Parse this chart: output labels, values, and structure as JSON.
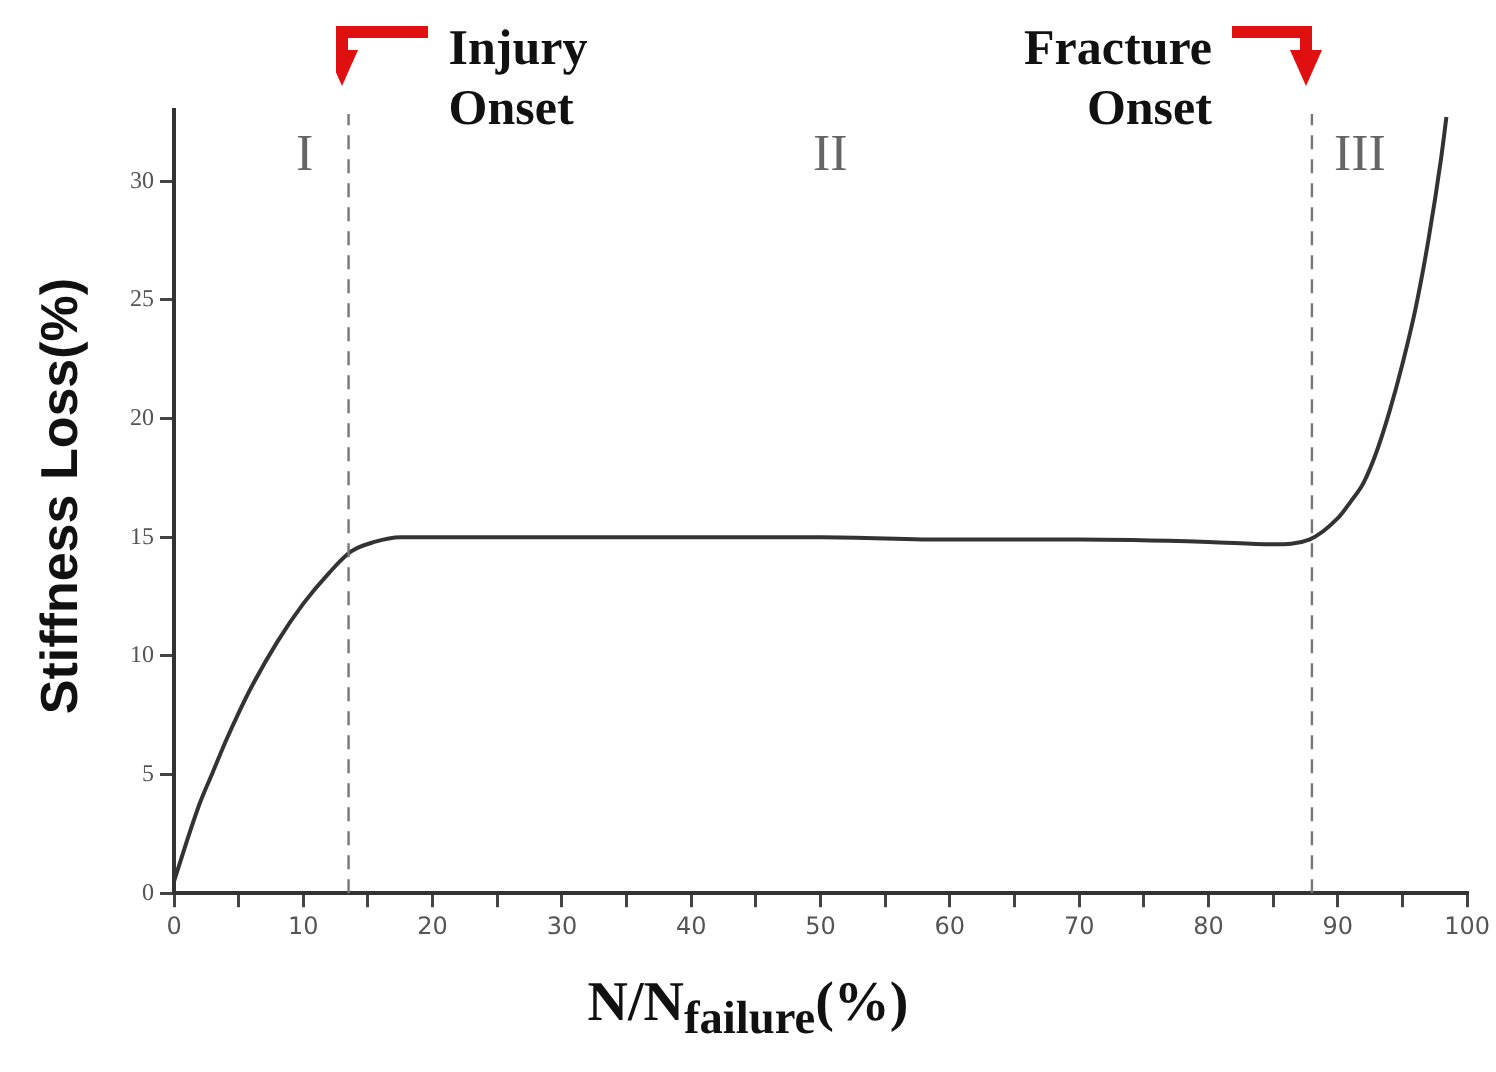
{
  "chart_data": {
    "type": "line",
    "xlabel": "N/N$_{failure}$(%)",
    "ylabel": "Stiffness Loss(%)",
    "x": [
      0,
      1,
      2,
      3,
      4,
      5,
      6,
      8,
      10,
      12,
      13.7,
      15.5,
      17.5,
      20,
      30,
      40,
      50,
      60,
      70,
      80,
      85,
      87.8,
      90,
      91,
      92,
      93,
      94,
      95,
      96,
      97,
      98,
      98.4
    ],
    "series": [
      {
        "color": "#333333",
        "values": [
          0.5,
          2.2,
          3.8,
          5.1,
          6.4,
          7.6,
          8.7,
          10.6,
          12.2,
          13.5,
          14.4,
          14.8,
          15,
          15,
          15,
          15,
          15,
          14.9,
          14.9,
          14.8,
          14.7,
          14.9,
          15.8,
          16.5,
          17.3,
          18.6,
          20.3,
          22.3,
          24.6,
          27.5,
          31,
          32.7
        ]
      }
    ],
    "xlim": [
      0,
      100
    ],
    "xticks": [
      0,
      {
        "value": 5,
        "label": null
      },
      10,
      {
        "value": 15,
        "label": null
      },
      20,
      {
        "value": 25,
        "label": null
      },
      30,
      {
        "value": 35,
        "label": null
      },
      40,
      {
        "value": 45,
        "label": null
      },
      50,
      {
        "value": 55,
        "label": null
      },
      60,
      {
        "value": 65,
        "label": null
      },
      70,
      {
        "value": 75,
        "label": null
      },
      80,
      {
        "value": 85,
        "label": null
      },
      90,
      {
        "value": 95,
        "label": null
      },
      100
    ],
    "ylim": [
      0,
      33
    ],
    "yticks": [
      0,
      5,
      10,
      15,
      20,
      25,
      30
    ],
    "ref_lines": [
      {
        "axis": "x",
        "value": 13.5,
        "label": "Injury Onset",
        "color": "#777777",
        "line_style": "dashed"
      },
      {
        "axis": "x",
        "value": 88,
        "label": "Fracture Onset",
        "color": "#777777",
        "line_style": "dashed"
      }
    ],
    "annotations": [
      "I",
      "II",
      "III"
    ],
    "marker": "none",
    "line_style": "solid",
    "legend": false,
    "grid": false
  }
}
